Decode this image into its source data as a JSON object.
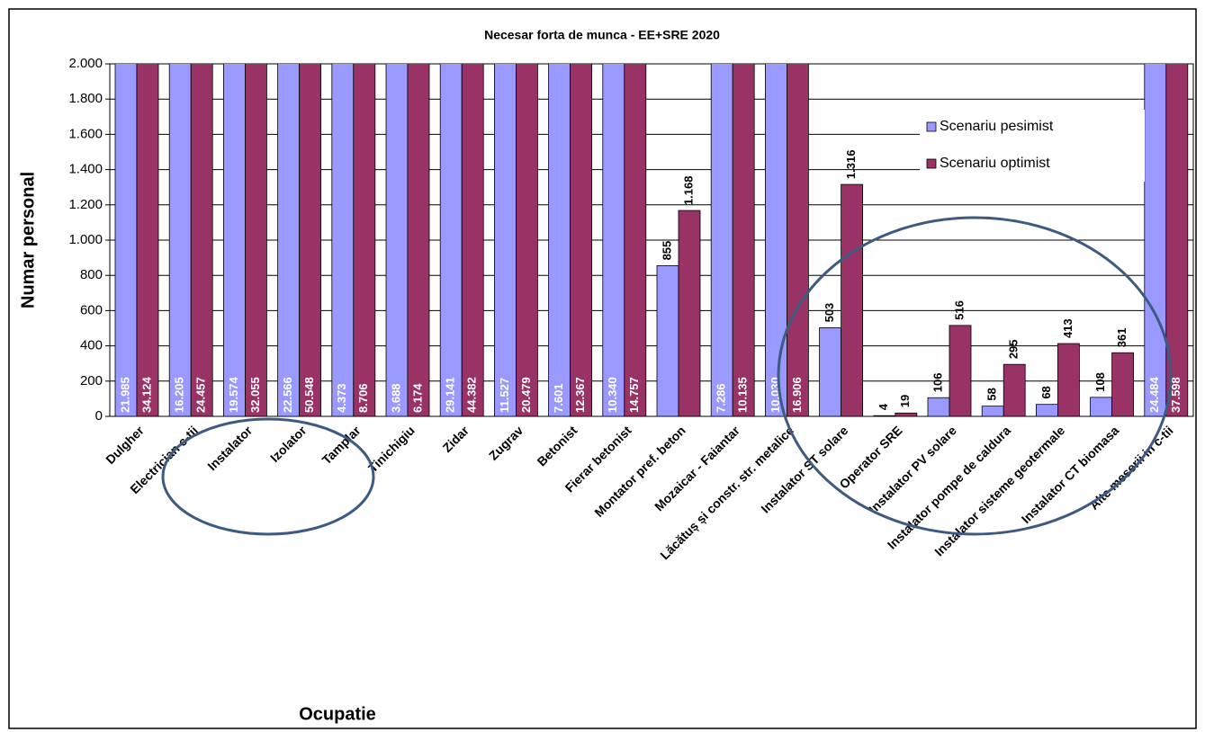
{
  "chart_data": {
    "type": "bar",
    "title": "Necesar forta de munca - EE+SRE 2020",
    "xlabel": "Ocupatie",
    "ylabel": "Numar personal",
    "categories": [
      "Dulgher",
      "Electrician c-tii",
      "Instalator",
      "Izolator",
      "Tamplar",
      "Tinichigiu",
      "Zidar",
      "Zugrav",
      "Betonist",
      "Fierar betonist",
      "Montator pref. beton",
      "Mozaicar - Faiantar",
      "Lăcătuș și constr. str. metalice",
      "Instalator ST solare",
      "Operator SRE",
      "Instalator PV solare",
      "Instalator pompe de caldura",
      "Instalator sisteme geotermale",
      "Instalator CT biomasa",
      "Alte meserii in c-tii"
    ],
    "series": [
      {
        "name": "Scenariu pesimist",
        "color": "#9999ff",
        "values": [
          21985,
          16205,
          19574,
          22566,
          4373,
          3688,
          29141,
          11527,
          7601,
          10340,
          855,
          7286,
          10030,
          503,
          4,
          106,
          58,
          68,
          108,
          24484
        ],
        "value_labels": [
          "21.985",
          "16.205",
          "19.574",
          "22.566",
          "4.373",
          "3.688",
          "29.141",
          "11.527",
          "7.601",
          "10.340",
          "855",
          "7.286",
          "10.030",
          "503",
          "4",
          "106",
          "58",
          "68",
          "108",
          "24.484"
        ]
      },
      {
        "name": "Scenariu optimist",
        "color": "#993366",
        "values": [
          34124,
          24457,
          32055,
          50548,
          8706,
          6174,
          44382,
          20479,
          12367,
          14757,
          1168,
          10135,
          16906,
          1316,
          19,
          516,
          295,
          413,
          361,
          37598
        ],
        "value_labels": [
          "34.124",
          "24.457",
          "32.055",
          "50.548",
          "8.706",
          "6.174",
          "44.382",
          "20.479",
          "12.367",
          "14.757",
          "1.168",
          "10.135",
          "16.906",
          "1.316",
          "19",
          "516",
          "295",
          "413",
          "361",
          "37.598"
        ]
      }
    ],
    "ylim": [
      0,
      2000
    ],
    "yticks": [
      0,
      200,
      400,
      600,
      800,
      {
        "value": 1000,
        "label": "1.000"
      },
      {
        "value": 1200,
        "label": "1.200"
      },
      {
        "value": 1400,
        "label": "1.400"
      },
      {
        "value": 1600,
        "label": "1.600"
      },
      {
        "value": 1800,
        "label": "1.800"
      },
      {
        "value": 2000,
        "label": "2.000"
      }
    ],
    "grid": true,
    "legend": "top-right"
  }
}
